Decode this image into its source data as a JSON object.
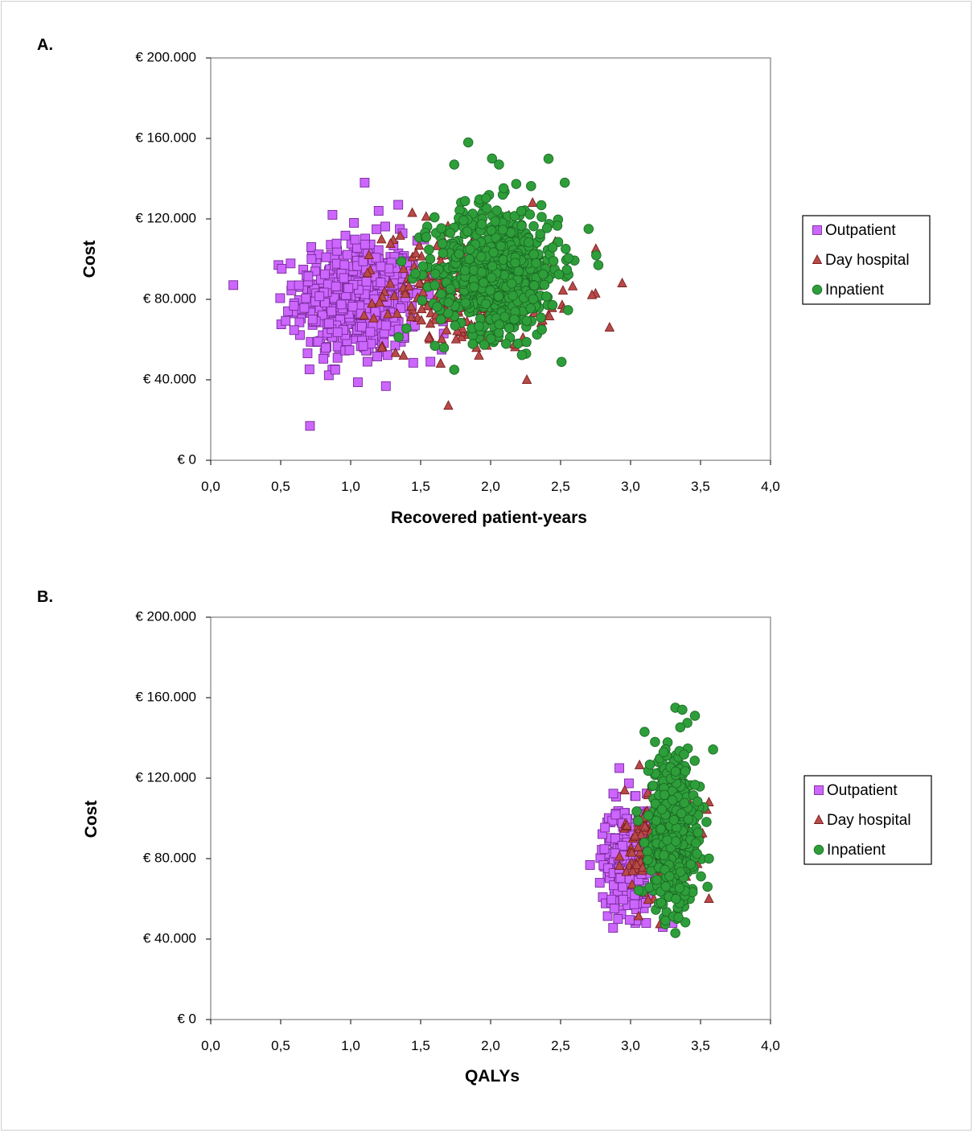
{
  "chart_data": [
    {
      "type": "scatter",
      "panel_label": "A.",
      "xlabel": "Recovered patient-years",
      "ylabel": "Cost",
      "xlim": [
        0,
        4
      ],
      "ylim": [
        0,
        200000
      ],
      "x_ticks": [
        "0,0",
        "0,5",
        "1,0",
        "1,5",
        "2,0",
        "2,5",
        "3,0",
        "3,5",
        "4,0"
      ],
      "y_ticks": [
        "€ 0",
        "€ 40.000",
        "€ 80.000",
        "€ 120.000",
        "€ 160.000",
        "€ 200.000"
      ],
      "grid": false,
      "legend_position": "right",
      "series": [
        {
          "name": "Outpatient",
          "marker": "square",
          "color": "#cc66ff",
          "stroke": "#7a2a99",
          "cloud": {
            "x_mean": 1.05,
            "x_sd": 0.22,
            "y_mean": 80000,
            "y_sd": 15000,
            "n": 520
          },
          "points": [
            [
              1.1,
              138000
            ],
            [
              0.87,
              122000
            ],
            [
              1.34,
              127000
            ],
            [
              1.2,
              124000
            ],
            [
              0.63,
              87000
            ],
            [
              0.89,
              45000
            ],
            [
              1.12,
              49000
            ],
            [
              1.65,
              55000
            ],
            [
              1.57,
              49000
            ],
            [
              0.72,
              100000
            ]
          ]
        },
        {
          "name": "Day hospital",
          "marker": "triangle",
          "color": "#b84a4a",
          "stroke": "#7a1f1f",
          "cloud": {
            "x_mean": 1.85,
            "x_sd": 0.3,
            "y_mean": 85000,
            "y_sd": 15000,
            "n": 300
          },
          "points": [
            [
              2.94,
              88000
            ],
            [
              2.85,
              66000
            ],
            [
              1.44,
              123000
            ],
            [
              1.12,
              93000
            ],
            [
              2.3,
              128000
            ]
          ]
        },
        {
          "name": "Inpatient",
          "marker": "circle",
          "color": "#2e9e3a",
          "stroke": "#1b6b24",
          "cloud": {
            "x_mean": 2.05,
            "x_sd": 0.22,
            "y_mean": 95000,
            "y_sd": 16000,
            "n": 700
          },
          "points": [
            [
              1.84,
              158000
            ],
            [
              2.01,
              150000
            ],
            [
              2.06,
              147000
            ],
            [
              1.74,
              147000
            ],
            [
              1.74,
              45000
            ],
            [
              2.53,
              138000
            ],
            [
              2.77,
              97000
            ],
            [
              2.7,
              115000
            ],
            [
              1.54,
              111000
            ]
          ]
        }
      ]
    },
    {
      "type": "scatter",
      "panel_label": "B.",
      "xlabel": "QALYs",
      "ylabel": "Cost",
      "xlim": [
        0,
        4
      ],
      "ylim": [
        0,
        200000
      ],
      "x_ticks": [
        "0,0",
        "0,5",
        "1,0",
        "1,5",
        "2,0",
        "2,5",
        "3,0",
        "3,5",
        "4,0"
      ],
      "y_ticks": [
        "€ 0",
        "€ 40.000",
        "€ 80.000",
        "€ 120.000",
        "€ 160.000",
        "€ 200.000"
      ],
      "grid": false,
      "legend_position": "right",
      "series": [
        {
          "name": "Outpatient",
          "marker": "square",
          "color": "#cc66ff",
          "stroke": "#7a2a99",
          "cloud": {
            "x_mean": 2.98,
            "x_sd": 0.09,
            "y_mean": 80000,
            "y_sd": 13000,
            "n": 320
          },
          "points": [
            [
              2.92,
              125000
            ],
            [
              3.3,
              48000
            ],
            [
              3.23,
              46000
            ],
            [
              2.91,
              50000
            ],
            [
              2.78,
              68000
            ]
          ]
        },
        {
          "name": "Day hospital",
          "marker": "triangle",
          "color": "#b84a4a",
          "stroke": "#7a1f1f",
          "cloud": {
            "x_mean": 3.2,
            "x_sd": 0.12,
            "y_mean": 88000,
            "y_sd": 14000,
            "n": 160
          },
          "points": [
            [
              3.56,
              60000
            ],
            [
              3.56,
              108000
            ],
            [
              2.92,
              81000
            ]
          ]
        },
        {
          "name": "Inpatient",
          "marker": "circle",
          "color": "#2e9e3a",
          "stroke": "#1b6b24",
          "cloud": {
            "x_mean": 3.3,
            "x_sd": 0.08,
            "y_mean": 95000,
            "y_sd": 18000,
            "n": 620
          },
          "points": [
            [
              3.32,
              155000
            ],
            [
              3.37,
              154000
            ],
            [
              3.46,
              151000
            ],
            [
              3.1,
              143000
            ],
            [
              3.32,
              43000
            ],
            [
              3.56,
              80000
            ],
            [
              3.55,
              66000
            ]
          ]
        }
      ]
    }
  ]
}
